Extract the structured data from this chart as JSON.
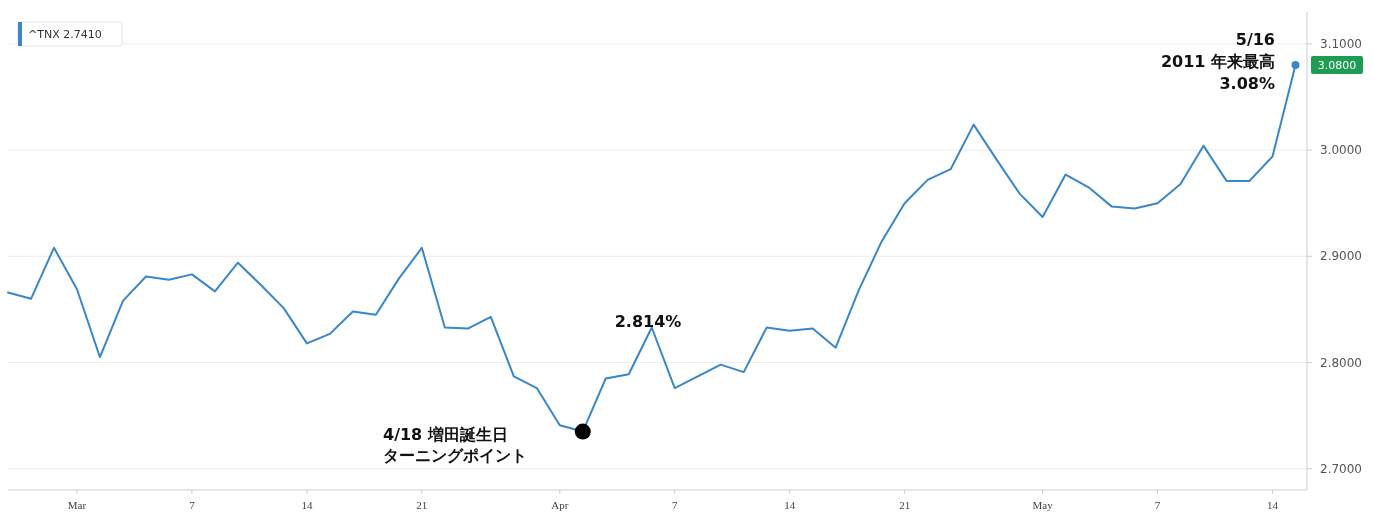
{
  "chart_data": {
    "type": "line",
    "categories": [
      null,
      null,
      null,
      "Mar",
      null,
      null,
      null,
      null,
      "7",
      null,
      null,
      null,
      null,
      "14",
      null,
      null,
      null,
      null,
      "21",
      null,
      null,
      null,
      null,
      null,
      "Apr",
      null,
      null,
      null,
      null,
      "7",
      null,
      null,
      null,
      null,
      "14",
      null,
      null,
      null,
      null,
      "21",
      null,
      null,
      null,
      null,
      null,
      "May",
      null,
      null,
      null,
      null,
      "7",
      null,
      null,
      null,
      null,
      "14",
      null
    ],
    "series": [
      {
        "name": "^TNX 2.7410",
        "color": "#3a87c8",
        "values": [
          2.866,
          2.86,
          2.908,
          2.869,
          2.805,
          2.858,
          2.881,
          2.878,
          2.883,
          2.867,
          2.894,
          2.873,
          2.851,
          2.818,
          2.827,
          2.848,
          2.845,
          2.879,
          2.908,
          2.833,
          2.832,
          2.843,
          2.787,
          2.776,
          2.741,
          2.735,
          2.785,
          2.789,
          2.833,
          2.776,
          2.787,
          2.798,
          2.791,
          2.833,
          2.83,
          2.832,
          2.814,
          2.868,
          2.914,
          2.95,
          2.972,
          2.982,
          3.024,
          2.991,
          2.959,
          2.937,
          2.977,
          2.965,
          2.947,
          2.945,
          2.95,
          2.968,
          3.004,
          2.971,
          2.971,
          2.994,
          3.08
        ]
      },
      {
        "type": "scatter",
        "color": "#000000",
        "values": [
          null,
          null,
          null,
          null,
          null,
          null,
          null,
          null,
          null,
          null,
          null,
          null,
          null,
          null,
          null,
          null,
          null,
          null,
          null,
          null,
          null,
          null,
          null,
          null,
          null,
          2.735,
          null,
          null,
          null,
          null,
          null,
          null,
          null,
          null,
          null,
          null,
          null,
          null,
          null,
          null,
          null,
          null,
          null,
          null,
          null,
          null,
          null,
          null,
          null,
          null,
          null,
          null,
          null,
          null,
          null,
          null,
          null
        ]
      },
      {
        "type": "scatter",
        "color": "#3a87c8",
        "values": [
          null,
          null,
          null,
          null,
          null,
          null,
          null,
          null,
          null,
          null,
          null,
          null,
          null,
          null,
          null,
          null,
          null,
          null,
          null,
          null,
          null,
          null,
          null,
          null,
          null,
          null,
          null,
          null,
          null,
          null,
          null,
          null,
          null,
          null,
          null,
          null,
          null,
          null,
          null,
          null,
          null,
          null,
          null,
          null,
          null,
          null,
          null,
          null,
          null,
          null,
          null,
          null,
          null,
          null,
          null,
          null,
          3.08
        ],
        "value_labels": [
          null,
          null,
          null,
          null,
          null,
          null,
          null,
          null,
          null,
          null,
          null,
          null,
          null,
          null,
          null,
          null,
          null,
          null,
          null,
          null,
          null,
          null,
          null,
          null,
          null,
          null,
          null,
          null,
          null,
          null,
          null,
          null,
          null,
          null,
          null,
          null,
          null,
          null,
          null,
          null,
          null,
          null,
          null,
          null,
          null,
          null,
          null,
          null,
          null,
          null,
          null,
          null,
          null,
          null,
          null,
          null,
          "3.0800"
        ]
      }
    ],
    "ylim": [
      2.68,
      3.13
    ],
    "yticks": [
      {
        "value": 2.7,
        "label": "2.7000"
      },
      {
        "value": 2.8,
        "label": "2.8000"
      },
      {
        "value": 2.9,
        "label": "2.9000"
      },
      {
        "value": 3.0,
        "label": "3.0000"
      },
      {
        "value": 3.1,
        "label": "3.1000"
      }
    ],
    "grid": "y",
    "legend": "top left",
    "line_style": "solid",
    "annotations": [
      "5/16",
      "2011 年来最高",
      "3.08%",
      "2.814%",
      "4/18 増田誕生日",
      "ターニングポイント"
    ]
  }
}
